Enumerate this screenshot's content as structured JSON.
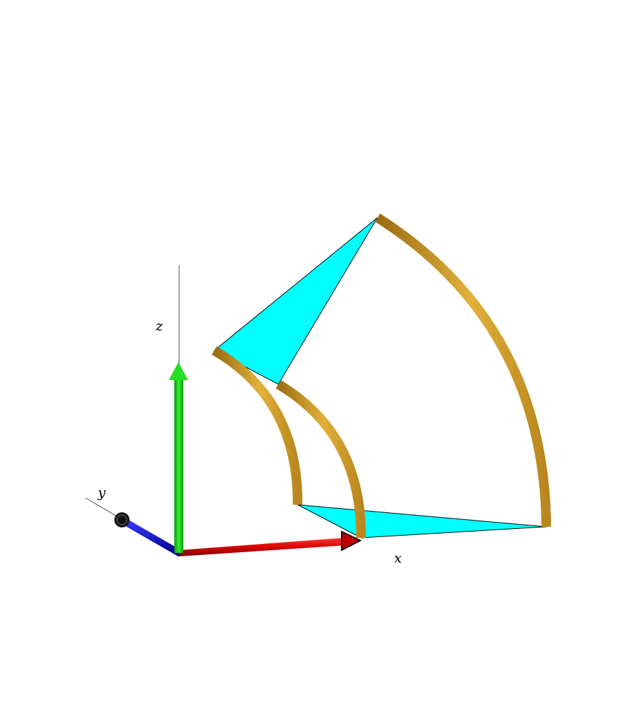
{
  "axes": {
    "x": {
      "label": "x",
      "color": "#e00000"
    },
    "y": {
      "label": "y",
      "color": "#0000e0"
    },
    "z": {
      "label": "z",
      "color": "#00d800"
    }
  },
  "colors": {
    "tube": "#d6a22c",
    "tube_dark": "#9a6c12",
    "tube_light": "#f0c85a",
    "face": "#00ffff"
  }
}
